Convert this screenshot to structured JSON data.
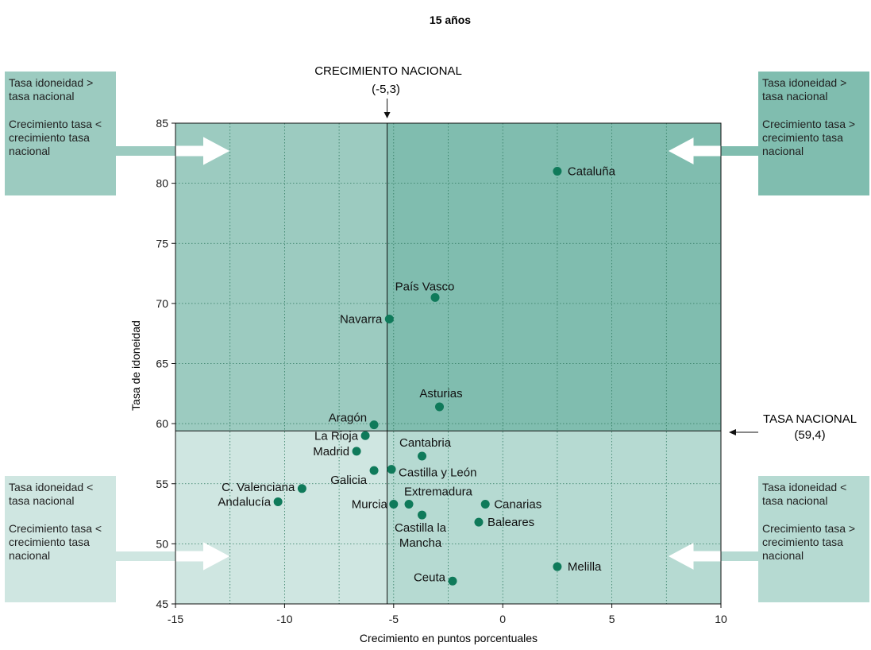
{
  "chart_data": {
    "type": "scatter",
    "title": "15 años",
    "xlabel": "Crecimiento en puntos porcentuales",
    "ylabel": "Tasa de idoneidad",
    "xlim": [
      -15,
      10
    ],
    "ylim": [
      45,
      85
    ],
    "xticks": [
      "-15",
      "-10",
      "-5",
      "0",
      "5",
      "10"
    ],
    "yticks": [
      "45",
      "50",
      "55",
      "60",
      "65",
      "70",
      "75",
      "80",
      "85"
    ],
    "grid": true,
    "reference_lines": {
      "vertical": {
        "label_line1": "CRECIMIENTO NACIONAL",
        "label_line2": "(-5,3)",
        "value": -5.3
      },
      "horizontal": {
        "label_line1": "TASA NACIONAL",
        "label_line2": "(59,4)",
        "value": 59.4
      }
    },
    "points": [
      {
        "name": "Cataluña",
        "x": 2.5,
        "y": 81.0
      },
      {
        "name": "País Vasco",
        "x": -3.1,
        "y": 70.5
      },
      {
        "name": "Navarra",
        "x": -5.2,
        "y": 68.7
      },
      {
        "name": "Asturias",
        "x": -2.9,
        "y": 61.4
      },
      {
        "name": "Aragón",
        "x": -5.9,
        "y": 59.9
      },
      {
        "name": "La Rioja",
        "x": -6.3,
        "y": 59.0
      },
      {
        "name": "Madrid",
        "x": -6.7,
        "y": 57.7
      },
      {
        "name": "Cantabria",
        "x": -3.7,
        "y": 57.3
      },
      {
        "name": "Galicia",
        "x": -5.9,
        "y": 56.1
      },
      {
        "name": "Castilla y León",
        "x": -5.1,
        "y": 56.2
      },
      {
        "name": "C. Valenciana",
        "x": -9.2,
        "y": 54.6
      },
      {
        "name": "Andalucía",
        "x": -10.3,
        "y": 53.5
      },
      {
        "name": "Murcia",
        "x": -5.0,
        "y": 53.3
      },
      {
        "name": "Extremadura",
        "x": -4.3,
        "y": 53.3
      },
      {
        "name": "Castilla la Mancha",
        "x": -3.7,
        "y": 52.4
      },
      {
        "name": "Canarias",
        "x": -0.8,
        "y": 53.3
      },
      {
        "name": "Baleares",
        "x": -1.1,
        "y": 51.8
      },
      {
        "name": "Melilla",
        "x": 2.5,
        "y": 48.1
      },
      {
        "name": "Ceuta",
        "x": -2.3,
        "y": 46.9
      }
    ]
  },
  "quadrant_boxes": {
    "top_left": {
      "line1": "Tasa idoneidad > tasa nacional",
      "line2": "Crecimiento tasa < crecimiento tasa nacional"
    },
    "top_right": {
      "line1": "Tasa idoneidad > tasa nacional",
      "line2": "Crecimiento tasa > crecimiento tasa nacional"
    },
    "bottom_left": {
      "line1": "Tasa idoneidad < tasa nacional",
      "line2": "Crecimiento tasa < crecimiento tasa nacional"
    },
    "bottom_right": {
      "line1": "Tasa idoneidad < tasa nacional",
      "line2": "Crecimiento tasa > crecimiento tasa nacional"
    }
  },
  "colors": {
    "quadrant_top_left": "#9ccbc0",
    "quadrant_top_right": "#80bdaf",
    "quadrant_bottom_left": "#cfe6e1",
    "quadrant_bottom_right": "#b6dad2",
    "point": "#0f7a5a"
  }
}
